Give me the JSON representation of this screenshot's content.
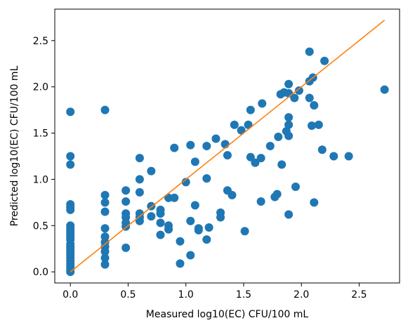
{
  "chart_data": {
    "type": "scatter",
    "title": "",
    "xlabel": "Measured log10(EC) CFU/100 mL",
    "ylabel": "Predicted log10(EC) CFU/100 mL",
    "xlim": [
      -0.135,
      2.85
    ],
    "ylim": [
      -0.12,
      2.84
    ],
    "xticks": [
      0.0,
      0.5,
      1.0,
      1.5,
      2.0,
      2.5
    ],
    "xtick_labels": [
      "0.0",
      "0.5",
      "1.0",
      "1.5",
      "2.0",
      "2.5"
    ],
    "yticks": [
      0.0,
      0.5,
      1.0,
      1.5,
      2.0,
      2.5
    ],
    "ytick_labels": [
      "0.0",
      "0.5",
      "1.0",
      "1.5",
      "2.0",
      "2.5"
    ],
    "grid": false,
    "legend": "none",
    "colors": {
      "points": "#1f77b4",
      "line": "#ff7f0e",
      "axes": "#000000"
    },
    "series": [
      {
        "type": "scatter",
        "points": [
          [
            0.0,
            1.73
          ],
          [
            0.0,
            1.25
          ],
          [
            0.0,
            1.16
          ],
          [
            0.0,
            0.73
          ],
          [
            0.0,
            0.7
          ],
          [
            0.0,
            0.67
          ],
          [
            0.0,
            0.5
          ],
          [
            0.0,
            0.47
          ],
          [
            0.0,
            0.44
          ],
          [
            0.0,
            0.41
          ],
          [
            0.0,
            0.38
          ],
          [
            0.0,
            0.35
          ],
          [
            0.0,
            0.3
          ],
          [
            0.0,
            0.27
          ],
          [
            0.0,
            0.24
          ],
          [
            0.0,
            0.21
          ],
          [
            0.0,
            0.18
          ],
          [
            0.0,
            0.15
          ],
          [
            0.0,
            0.12
          ],
          [
            0.0,
            0.09
          ],
          [
            0.0,
            0.06
          ],
          [
            0.0,
            0.03
          ],
          [
            0.0,
            0.0
          ],
          [
            0.3,
            1.75
          ],
          [
            0.3,
            0.83
          ],
          [
            0.3,
            0.75
          ],
          [
            0.3,
            0.65
          ],
          [
            0.3,
            0.47
          ],
          [
            0.3,
            0.38
          ],
          [
            0.3,
            0.32
          ],
          [
            0.3,
            0.27
          ],
          [
            0.3,
            0.22
          ],
          [
            0.3,
            0.15
          ],
          [
            0.3,
            0.08
          ],
          [
            0.48,
            0.88
          ],
          [
            0.48,
            0.76
          ],
          [
            0.48,
            0.63
          ],
          [
            0.48,
            0.59
          ],
          [
            0.48,
            0.53
          ],
          [
            0.48,
            0.49
          ],
          [
            0.48,
            0.26
          ],
          [
            0.6,
            1.23
          ],
          [
            0.6,
            1.0
          ],
          [
            0.6,
            0.86
          ],
          [
            0.6,
            0.63
          ],
          [
            0.6,
            0.59
          ],
          [
            0.6,
            0.55
          ],
          [
            0.7,
            1.09
          ],
          [
            0.7,
            0.71
          ],
          [
            0.7,
            0.6
          ],
          [
            0.78,
            0.67
          ],
          [
            0.78,
            0.63
          ],
          [
            0.78,
            0.53
          ],
          [
            0.78,
            0.4
          ],
          [
            0.85,
            0.8
          ],
          [
            0.85,
            0.5
          ],
          [
            0.85,
            0.46
          ],
          [
            0.9,
            1.34
          ],
          [
            0.9,
            0.8
          ],
          [
            0.95,
            0.09
          ],
          [
            0.95,
            0.33
          ],
          [
            1.0,
            0.97
          ],
          [
            1.04,
            1.37
          ],
          [
            1.04,
            0.55
          ],
          [
            1.04,
            0.18
          ],
          [
            1.08,
            1.19
          ],
          [
            1.08,
            0.72
          ],
          [
            1.11,
            0.47
          ],
          [
            1.11,
            0.45
          ],
          [
            1.18,
            1.36
          ],
          [
            1.18,
            1.01
          ],
          [
            1.18,
            0.35
          ],
          [
            1.2,
            0.48
          ],
          [
            1.26,
            1.44
          ],
          [
            1.3,
            0.64
          ],
          [
            1.3,
            0.59
          ],
          [
            1.34,
            1.38
          ],
          [
            1.36,
            1.26
          ],
          [
            1.36,
            0.88
          ],
          [
            1.4,
            0.83
          ],
          [
            1.42,
            1.59
          ],
          [
            1.48,
            1.53
          ],
          [
            1.51,
            0.44
          ],
          [
            1.54,
            1.59
          ],
          [
            1.56,
            1.75
          ],
          [
            1.56,
            1.24
          ],
          [
            1.6,
            1.18
          ],
          [
            1.65,
            1.23
          ],
          [
            1.65,
            0.76
          ],
          [
            1.66,
            1.82
          ],
          [
            1.73,
            1.36
          ],
          [
            1.77,
            0.81
          ],
          [
            1.79,
            0.84
          ],
          [
            1.8,
            1.46
          ],
          [
            1.82,
            1.92
          ],
          [
            1.83,
            1.16
          ],
          [
            1.85,
            1.94
          ],
          [
            1.87,
            1.52
          ],
          [
            1.89,
            2.03
          ],
          [
            1.89,
            1.93
          ],
          [
            1.89,
            1.67
          ],
          [
            1.89,
            1.59
          ],
          [
            1.89,
            1.47
          ],
          [
            1.89,
            0.62
          ],
          [
            1.94,
            1.88
          ],
          [
            1.95,
            0.92
          ],
          [
            1.98,
            1.96
          ],
          [
            2.07,
            2.38
          ],
          [
            2.07,
            2.06
          ],
          [
            2.07,
            1.88
          ],
          [
            2.09,
            1.58
          ],
          [
            2.1,
            2.1
          ],
          [
            2.11,
            1.8
          ],
          [
            2.11,
            0.75
          ],
          [
            2.15,
            1.59
          ],
          [
            2.18,
            1.32
          ],
          [
            2.2,
            2.28
          ],
          [
            2.28,
            1.25
          ],
          [
            2.41,
            1.25
          ],
          [
            2.72,
            1.97
          ]
        ]
      },
      {
        "type": "line",
        "points": [
          [
            0.0,
            0.0
          ],
          [
            2.72,
            2.72
          ]
        ]
      }
    ]
  }
}
